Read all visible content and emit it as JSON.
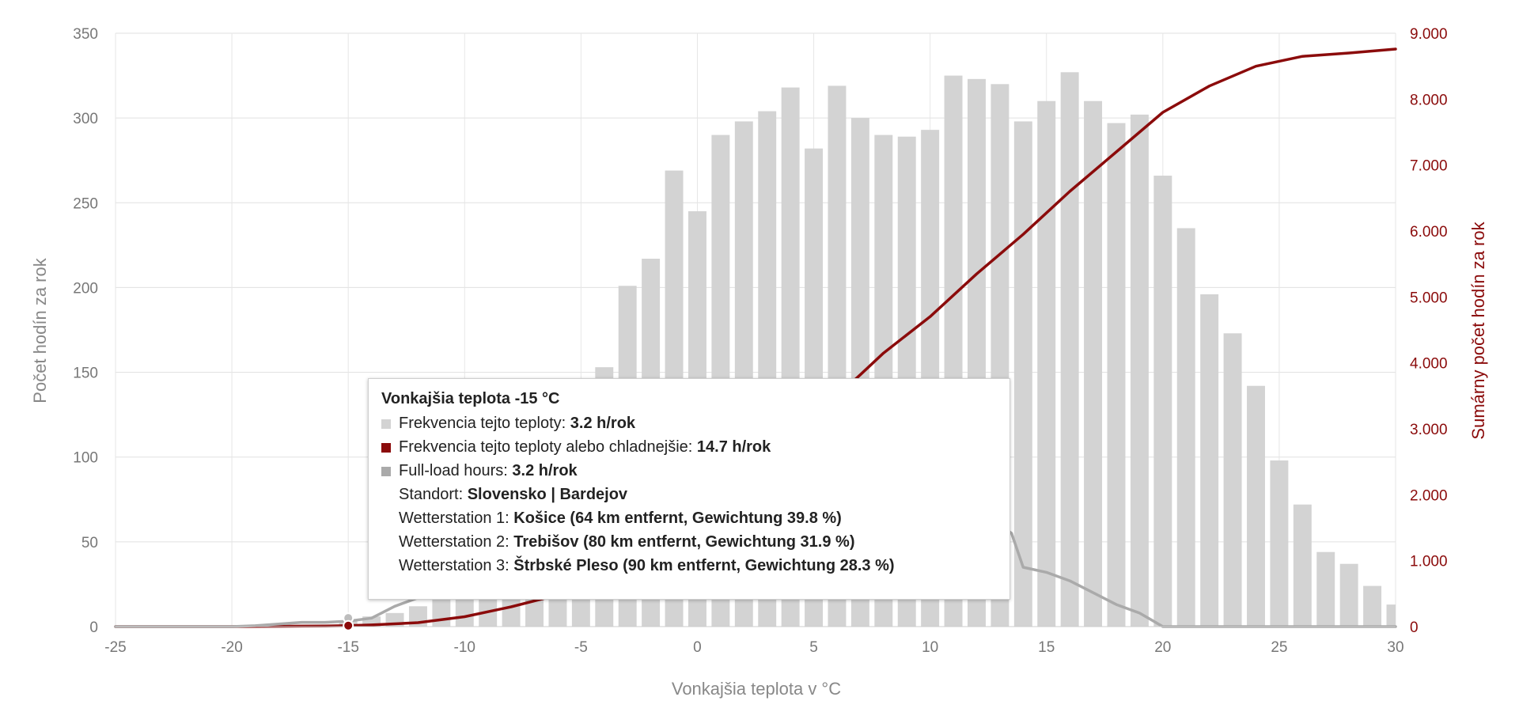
{
  "chart_data": {
    "type": "bar",
    "xlabel": "Vonkajšia teplota v °C",
    "ylabel": "Počet hodín za rok",
    "y2label": "Sumárny počet hodín za rok",
    "xlim": [
      -25,
      30
    ],
    "ylim": [
      0,
      350
    ],
    "y2lim": [
      0,
      9000
    ],
    "x_ticks": [
      "-25",
      "-20",
      "-15",
      "-10",
      "-5",
      "0",
      "5",
      "10",
      "15",
      "20",
      "25",
      "30"
    ],
    "y_ticks": [
      "0",
      "50",
      "100",
      "150",
      "200",
      "250",
      "300",
      "350"
    ],
    "y2_ticks": [
      "0",
      "1.000",
      "2.000",
      "3.000",
      "4.000",
      "5.000",
      "6.000",
      "7.000",
      "8.000",
      "9.000"
    ],
    "grid": true,
    "series": [
      {
        "name": "Frekvencia tejto teploty",
        "kind": "bar",
        "color": "#d3d3d3",
        "x": [
          -15,
          -14,
          -13,
          -12,
          -11,
          -10,
          -9,
          -8,
          -7,
          -6,
          -5,
          -4,
          -3,
          -2,
          -1,
          0,
          1,
          2,
          3,
          4,
          5,
          6,
          7,
          8,
          9,
          10,
          11,
          12,
          13,
          14,
          15,
          16,
          17,
          18,
          19,
          20,
          21,
          22,
          23,
          24,
          25,
          26,
          27,
          28,
          29,
          30
        ],
        "values": [
          3.2,
          6,
          8,
          12,
          18,
          28,
          40,
          55,
          72,
          95,
          118,
          153,
          201,
          217,
          269,
          245,
          290,
          298,
          304,
          318,
          282,
          319,
          300,
          290,
          289,
          293,
          325,
          323,
          320,
          298,
          310,
          327,
          310,
          297,
          302,
          266,
          235,
          196,
          173,
          142,
          98,
          72,
          44,
          37,
          24,
          13
        ]
      },
      {
        "name": "Frekvencia tejto teploty alebo chladnejšie",
        "kind": "line",
        "axis": "right",
        "color": "#8b0b0b",
        "x": [
          -25,
          -20,
          -18,
          -16,
          -15,
          -14,
          -12,
          -10,
          -8,
          -6,
          -4,
          -2,
          0,
          2,
          4,
          6,
          7,
          8,
          10,
          12,
          14,
          16,
          18,
          20,
          22,
          24,
          26,
          28,
          30
        ],
        "values": [
          0,
          0,
          5,
          10,
          14.7,
          25,
          60,
          150,
          300,
          480,
          700,
          1000,
          1500,
          2300,
          2950,
          3500,
          3820,
          4150,
          4700,
          5350,
          5950,
          6600,
          7200,
          7800,
          8200,
          8500,
          8650,
          8700,
          8760
        ]
      },
      {
        "name": "Full-load hours",
        "kind": "line",
        "color": "#aaaaaa",
        "x": [
          -25,
          -20,
          -19,
          -18,
          -17,
          -16,
          -15,
          -14,
          -13,
          -12,
          -10,
          -8,
          -6,
          -5,
          0,
          5,
          10,
          12,
          13,
          13.5,
          14,
          15,
          16,
          17,
          18,
          19,
          19.5,
          20,
          25,
          30
        ],
        "values": [
          0,
          0,
          0.5,
          1.5,
          2.5,
          2.5,
          3.2,
          5,
          12,
          17,
          20,
          20,
          20,
          20,
          20,
          20,
          20,
          50,
          60,
          55,
          35,
          32,
          27,
          20,
          13,
          8,
          4,
          0,
          0,
          0
        ]
      }
    ],
    "tooltip": {
      "title": "Vonkajšia teplota -15 °C",
      "rows": [
        {
          "symbol": "bar-gray",
          "label": "Frekvencia tejto teploty: ",
          "value": "3.2 h/rok"
        },
        {
          "symbol": "bar-red",
          "label": "Frekvencia tejto teploty alebo chladnejšie: ",
          "value": "14.7 h/rok"
        },
        {
          "symbol": "bar-darkgray",
          "label": "Full-load hours: ",
          "value": "3.2 h/rok"
        },
        {
          "symbol": "none",
          "label": "Standort: ",
          "value": "Slovensko | Bardejov"
        },
        {
          "symbol": "none",
          "label": "Wetterstation 1: ",
          "value": "Košice (64 km entfernt, Gewichtung 39.8 %)"
        },
        {
          "symbol": "none",
          "label": "Wetterstation 2: ",
          "value": "Trebišov (80 km entfernt, Gewichtung 31.9 %)"
        },
        {
          "symbol": "none",
          "label": "Wetterstation 3: ",
          "value": "Štrbské Pleso (90 km entfernt, Gewichtung 28.3 %)"
        }
      ],
      "symbol_colors": {
        "bar-gray": "#d3d3d3",
        "bar-red": "#8b0b0b",
        "bar-darkgray": "#aaaaaa",
        "none": "transparent"
      }
    }
  }
}
